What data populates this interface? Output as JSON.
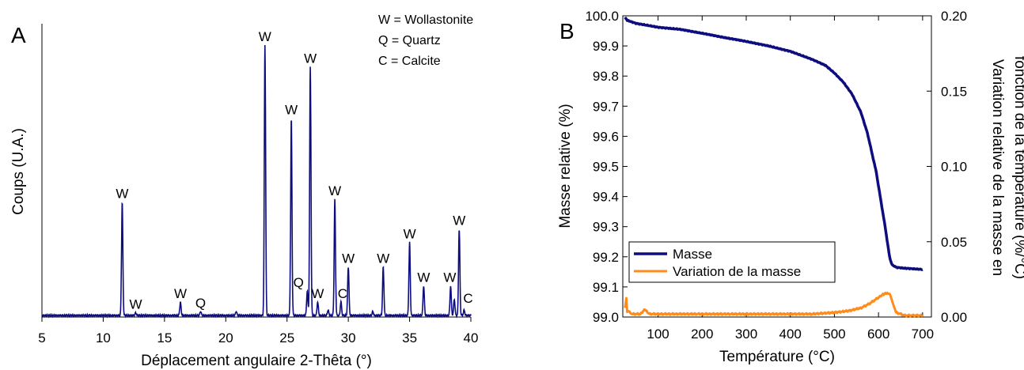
{
  "chart_data": [
    {
      "type": "line",
      "panel_label": "A",
      "xlabel": "Déplacement angulaire 2-Thêta (°)",
      "ylabel": "Coups (U.A.)",
      "xlim": [
        5,
        40
      ],
      "xticks": [
        5,
        10,
        15,
        20,
        25,
        30,
        35,
        40
      ],
      "legend_text": [
        "W = Wollastonite",
        "Q = Quartz",
        "C = Calcite"
      ],
      "legend_position": "top-right",
      "series": [
        {
          "color": "#0d0d80",
          "peaks": [
            {
              "x": 11.55,
              "y": 0.42,
              "label": "W"
            },
            {
              "x": 12.65,
              "y": 0.01,
              "label": "W"
            },
            {
              "x": 16.3,
              "y": 0.05,
              "label": "W"
            },
            {
              "x": 17.95,
              "y": 0.015,
              "label": "Q"
            },
            {
              "x": 20.85,
              "y": 0.015
            },
            {
              "x": 23.2,
              "y": 1.0,
              "label": "W"
            },
            {
              "x": 25.35,
              "y": 0.73,
              "label": "W"
            },
            {
              "x": 26.65,
              "y": 0.09,
              "label": "Q"
            },
            {
              "x": 26.9,
              "y": 0.92,
              "label": "W"
            },
            {
              "x": 27.5,
              "y": 0.05,
              "label": "W"
            },
            {
              "x": 28.35,
              "y": 0.02
            },
            {
              "x": 28.9,
              "y": 0.43,
              "label": "W"
            },
            {
              "x": 29.4,
              "y": 0.05,
              "label": "C"
            },
            {
              "x": 30.0,
              "y": 0.18,
              "label": "W"
            },
            {
              "x": 32.0,
              "y": 0.015
            },
            {
              "x": 32.85,
              "y": 0.18,
              "label": "W"
            },
            {
              "x": 35.0,
              "y": 0.27,
              "label": "W"
            },
            {
              "x": 36.15,
              "y": 0.11,
              "label": "W"
            },
            {
              "x": 38.35,
              "y": 0.11,
              "label": "W"
            },
            {
              "x": 38.65,
              "y": 0.06
            },
            {
              "x": 39.05,
              "y": 0.32,
              "label": "W"
            },
            {
              "x": 39.45,
              "y": 0.02,
              "label": "C"
            }
          ]
        }
      ]
    },
    {
      "type": "line",
      "panel_label": "B",
      "xlabel": "Température (°C)",
      "ylabel": "Masse relative (%)",
      "ylabel_right": [
        "Variation relative de la masse en",
        "fonction de la température (%/°C)"
      ],
      "xlim": [
        20,
        720
      ],
      "xticks": [
        100,
        200,
        300,
        400,
        500,
        600,
        700
      ],
      "ylim": [
        99.0,
        100.0
      ],
      "yticks": [
        "99.0",
        "99.1",
        "99.2",
        "99.3",
        "99.4",
        "99.5",
        "99.6",
        "99.7",
        "99.8",
        "99.9",
        "100.0"
      ],
      "ylim_right": [
        0.0,
        0.2
      ],
      "yticks_right": [
        "0.00",
        "0.05",
        "0.10",
        "0.15",
        "0.20"
      ],
      "legend_position": "bottom-left",
      "series": [
        {
          "name": "Masse",
          "axis": "left",
          "color": "#0d0d80",
          "x": [
            25,
            30,
            50,
            100,
            150,
            200,
            250,
            300,
            350,
            400,
            450,
            480,
            500,
            520,
            540,
            560,
            575,
            585,
            595,
            605,
            615,
            625,
            630,
            640,
            660,
            680,
            700
          ],
          "y": [
            99.995,
            99.985,
            99.975,
            99.962,
            99.955,
            99.942,
            99.928,
            99.915,
            99.9,
            99.882,
            99.855,
            99.835,
            99.81,
            99.78,
            99.74,
            99.68,
            99.61,
            99.545,
            99.48,
            99.39,
            99.3,
            99.2,
            99.175,
            99.165,
            99.162,
            99.16,
            99.158
          ]
        },
        {
          "name": "Variation de la masse",
          "axis": "right",
          "color": "#ff8c1a",
          "x": [
            25,
            28,
            30,
            35,
            40,
            60,
            70,
            80,
            100,
            150,
            200,
            250,
            300,
            350,
            400,
            450,
            500,
            530,
            560,
            580,
            600,
            610,
            620,
            625,
            630,
            635,
            640,
            660,
            680,
            700
          ],
          "y": [
            0.006,
            0.012,
            0.003,
            0.004,
            0.002,
            0.002,
            0.005,
            0.002,
            0.002,
            0.002,
            0.002,
            0.002,
            0.002,
            0.002,
            0.002,
            0.002,
            0.003,
            0.004,
            0.006,
            0.009,
            0.013,
            0.015,
            0.016,
            0.015,
            0.012,
            0.007,
            0.003,
            0.001,
            0.001,
            0.001
          ]
        }
      ]
    }
  ]
}
